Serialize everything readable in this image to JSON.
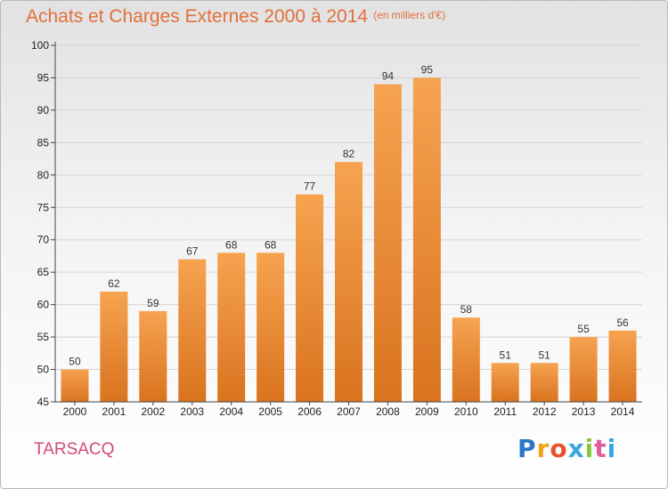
{
  "title": "Achats et Charges Externes 2000 à 2014",
  "subtitle": "(en milliers d'€)",
  "city": "TARSACQ",
  "logo_text": [
    "P",
    "r",
    "o",
    "x",
    "i",
    "t",
    "i"
  ],
  "colors": {
    "title": "#e0703b",
    "city": "#d24a78",
    "bar_top": "#f6a350",
    "bar_bottom": "#d9731f",
    "grid": "#d5d5d5",
    "axis": "#444444"
  },
  "chart_data": {
    "type": "bar",
    "categories": [
      "2000",
      "2001",
      "2002",
      "2003",
      "2004",
      "2005",
      "2006",
      "2007",
      "2008",
      "2009",
      "2010",
      "2011",
      "2012",
      "2013",
      "2014"
    ],
    "values": [
      50,
      62,
      59,
      67,
      68,
      68,
      77,
      82,
      94,
      95,
      58,
      51,
      51,
      55,
      56
    ],
    "ylim": [
      45,
      100
    ],
    "yticks": [
      45,
      50,
      55,
      60,
      65,
      70,
      75,
      80,
      85,
      90,
      95,
      100
    ],
    "grid": true,
    "data_labels": true
  }
}
